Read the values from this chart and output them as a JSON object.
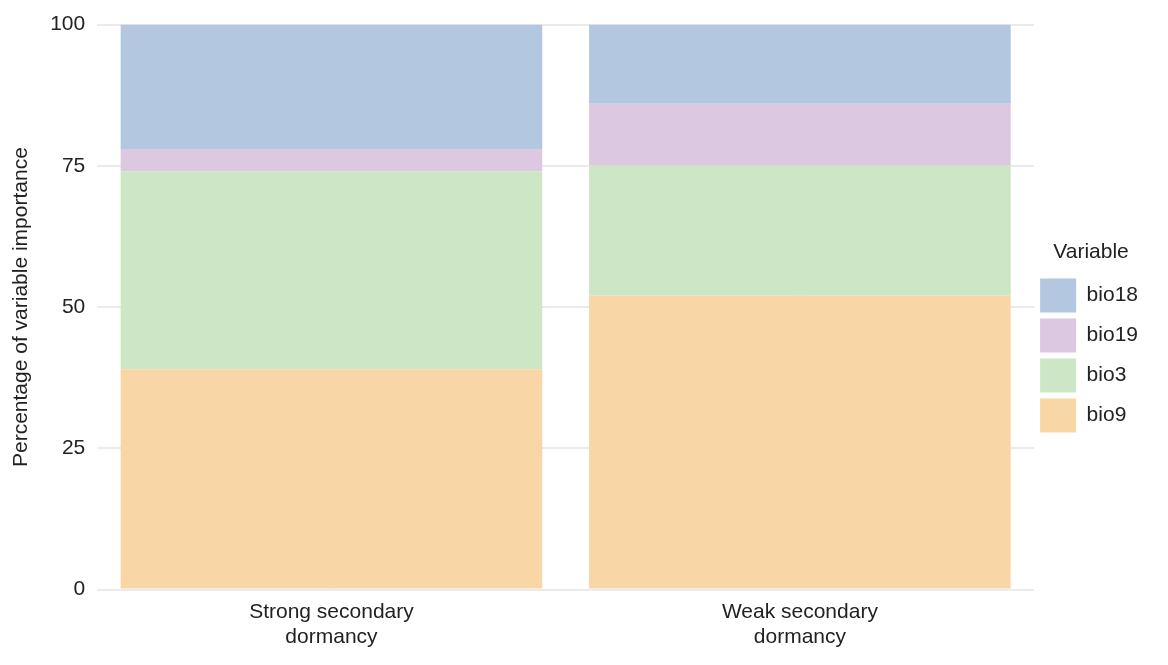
{
  "chart_data": {
    "type": "bar",
    "stacked": true,
    "ylabel": "Percentage of variable importance",
    "legend_title": "Variable",
    "legend": "right",
    "grid": true,
    "categories": [
      "Strong secondary dormancy",
      "Weak secondary dormancy"
    ],
    "ylim": [
      0,
      100
    ],
    "yticks": [
      0,
      25,
      50,
      75,
      100
    ],
    "series": [
      {
        "name": "bio9",
        "color": "#f9d6a6",
        "values": [
          39,
          52
        ]
      },
      {
        "name": "bio3",
        "color": "#cde6c5",
        "values": [
          35,
          23
        ]
      },
      {
        "name": "bio19",
        "color": "#dcc8e1",
        "values": [
          4,
          11
        ]
      },
      {
        "name": "bio18",
        "color": "#b3c7e1",
        "values": [
          22,
          14
        ]
      }
    ]
  }
}
